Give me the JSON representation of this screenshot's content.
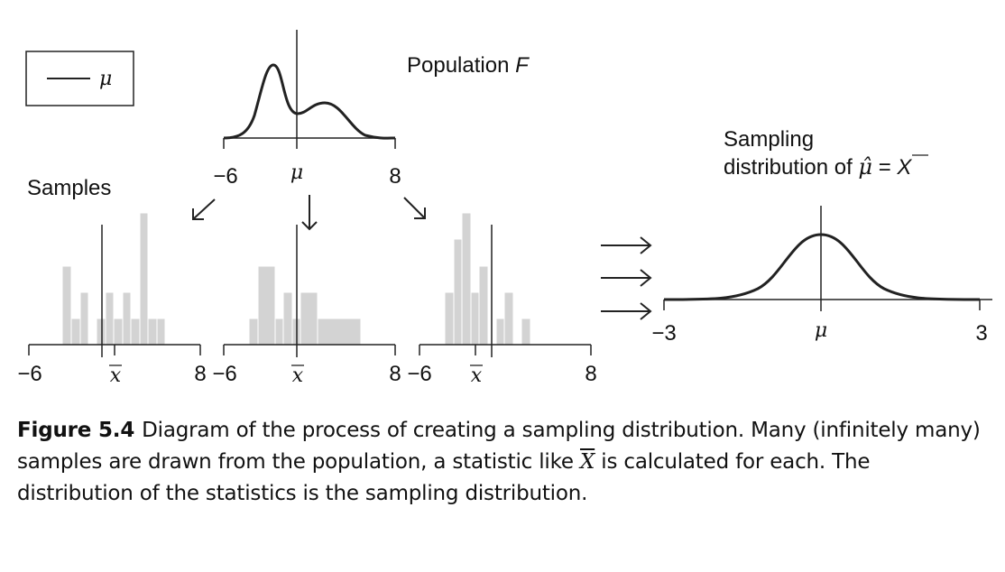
{
  "legend": {
    "label": "μ"
  },
  "population": {
    "title_prefix": "Population ",
    "title_symbol": "F",
    "axis_min_label": "−6",
    "axis_center_label": "μ",
    "axis_max_label": "8",
    "x_range": [
      -6,
      8
    ]
  },
  "samples_label": "Samples",
  "sample_plots": [
    {
      "axis_min_label": "−6",
      "axis_center_label": "x",
      "axis_max_label": "8",
      "x_range": [
        -6,
        8
      ],
      "xbar": -0.3
    },
    {
      "axis_min_label": "−6",
      "axis_center_label": "x",
      "axis_max_label": "8",
      "x_range": [
        -6,
        8
      ],
      "xbar": 0
    },
    {
      "axis_min_label": "−6",
      "axis_center_label": "x",
      "axis_max_label": "8",
      "x_range": [
        -6,
        8
      ],
      "xbar": 0.8
    }
  ],
  "sampling_distribution": {
    "title_line1": "Sampling",
    "title_line2_prefix": "distribution of ",
    "title_line2_estimator": "μ̂",
    "title_line2_eq": " = ",
    "title_line2_symbol": "X",
    "axis_min_label": "−3",
    "axis_center_label": "μ",
    "axis_max_label": "3",
    "x_range": [
      -3,
      3
    ]
  },
  "caption": {
    "number": "Figure 5.4",
    "text_before": "Diagram of the process of creating a sampling distribution. Many (infinitely many) samples are drawn from the population, a statistic like ",
    "symbol": "X",
    "text_after": " is calculated for each. The distribution of the statistics is the sampling distribution."
  },
  "colors": {
    "bars": "#d3d3d3",
    "lines": "#222222"
  }
}
